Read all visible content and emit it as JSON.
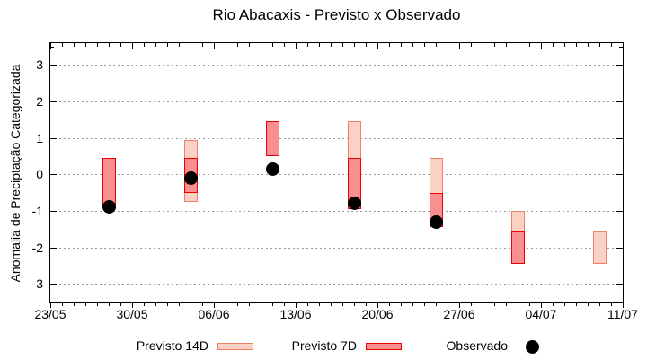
{
  "title": "Rio Abacaxis - Previsto x Observado",
  "axes": {
    "y_label": "Anomalia de Preciptação Categorizada",
    "y_ticks": [
      3,
      2,
      1,
      0,
      -1,
      -2,
      -3
    ],
    "y_minor_ticks": [
      3.5
    ],
    "x_ticks": [
      {
        "label": "23/05",
        "day": 0
      },
      {
        "label": "30/05",
        "day": 7
      },
      {
        "label": "06/06",
        "day": 14
      },
      {
        "label": "13/06",
        "day": 21
      },
      {
        "label": "20/06",
        "day": 28
      },
      {
        "label": "27/06",
        "day": 35
      },
      {
        "label": "04/07",
        "day": 42
      },
      {
        "label": "11/07",
        "day": 49
      }
    ],
    "x_span_days": 49
  },
  "chart_data": {
    "type": "range-bar+scatter",
    "title": "Rio Abacaxis - Previsto x Observado",
    "xlabel": "",
    "ylabel": "Anomalia de Preciptação Categorizada",
    "ylim": [
      -3.5,
      3.6
    ],
    "grid": true,
    "grid_color": "#9a9a9a",
    "legend_position": "below",
    "x_tick_labels": [
      "23/05",
      "30/05",
      "06/06",
      "13/06",
      "20/06",
      "27/06",
      "04/07",
      "11/07"
    ],
    "y_tick_labels": [
      "3",
      "2",
      "1",
      "0",
      "-1",
      "-2",
      "-3"
    ],
    "series": [
      {
        "name": "Previsto 14D",
        "type": "range-bar",
        "fill": "#fbd0c5",
        "border": "#f08169"
      },
      {
        "name": "Previsto 7D",
        "type": "range-bar",
        "fill": "#f9908f",
        "border": "#ee0000"
      },
      {
        "name": "Observado",
        "type": "scatter",
        "color": "#000000"
      }
    ],
    "points": [
      {
        "date": "28/05",
        "day_offset": 5,
        "previsto_14d": null,
        "previsto_7d": [
          -0.85,
          0.45
        ],
        "observado": -0.9
      },
      {
        "date": "04/06",
        "day_offset": 12,
        "previsto_14d": [
          -0.75,
          0.95
        ],
        "previsto_7d": [
          -0.5,
          0.45
        ],
        "observado": -0.1
      },
      {
        "date": "11/06",
        "day_offset": 19,
        "previsto_14d": null,
        "previsto_7d": [
          0.5,
          1.45
        ],
        "observado": 0.15
      },
      {
        "date": "18/06",
        "day_offset": 26,
        "previsto_14d": [
          -0.95,
          1.45
        ],
        "previsto_7d": [
          -0.95,
          0.45
        ],
        "observado": -0.8
      },
      {
        "date": "25/06",
        "day_offset": 33,
        "previsto_14d": [
          -1.45,
          0.45
        ],
        "previsto_7d": [
          -1.45,
          -0.5
        ],
        "observado": -1.3
      },
      {
        "date": "02/07",
        "day_offset": 40,
        "previsto_14d": [
          -2.45,
          -1.0
        ],
        "previsto_7d": [
          -2.45,
          -1.55
        ],
        "observado": null
      },
      {
        "date": "09/07",
        "day_offset": 47,
        "previsto_14d": [
          -2.45,
          -1.55
        ],
        "previsto_7d": null,
        "observado": null
      }
    ]
  }
}
